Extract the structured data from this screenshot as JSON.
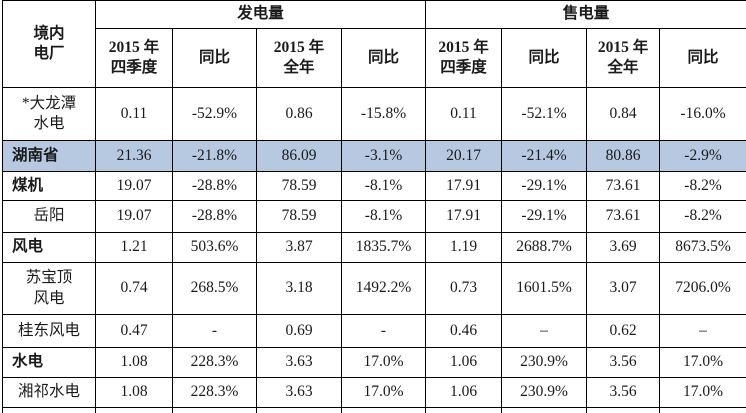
{
  "table": {
    "corner_header": "境内\n电厂",
    "group_headers": [
      {
        "label": "发电量"
      },
      {
        "label": "售电量"
      }
    ],
    "sub_headers": [
      "2015 年\n四季度",
      "同比",
      "2015 年\n全年",
      "同比",
      "2015 年\n四季度",
      "同比",
      "2015 年\n全年",
      "同比"
    ],
    "highlight_color": "#b7c9e1",
    "rows": [
      {
        "label": "*大龙潭\n水电",
        "bold": false,
        "highlight": false,
        "values": [
          "0.11",
          "-52.9%",
          "0.86",
          "-15.8%",
          "0.11",
          "-52.1%",
          "0.84",
          "-16.0%"
        ]
      },
      {
        "label": "湖南省",
        "bold": true,
        "highlight": true,
        "values": [
          "21.36",
          "-21.8%",
          "86.09",
          "-3.1%",
          "20.17",
          "-21.4%",
          "80.86",
          "-2.9%"
        ]
      },
      {
        "label": "煤机",
        "bold": true,
        "highlight": false,
        "values": [
          "19.07",
          "-28.8%",
          "78.59",
          "-8.1%",
          "17.91",
          "-29.1%",
          "73.61",
          "-8.2%"
        ]
      },
      {
        "label": "岳阳",
        "bold": false,
        "highlight": false,
        "values": [
          "19.07",
          "-28.8%",
          "78.59",
          "-8.1%",
          "17.91",
          "-29.1%",
          "73.61",
          "-8.2%"
        ]
      },
      {
        "label": "风电",
        "bold": true,
        "highlight": false,
        "values": [
          "1.21",
          "503.6%",
          "3.87",
          "1835.7%",
          "1.19",
          "2688.7%",
          "3.69",
          "8673.5%"
        ]
      },
      {
        "label": "苏宝顶\n风电",
        "bold": false,
        "highlight": false,
        "values": [
          "0.74",
          "268.5%",
          "3.18",
          "1492.2%",
          "0.73",
          "1601.5%",
          "3.07",
          "7206.0%"
        ]
      },
      {
        "label": "桂东风电",
        "bold": false,
        "highlight": false,
        "values": [
          "0.47",
          "-",
          "0.69",
          "-",
          "0.46",
          "–",
          "0.62",
          "–"
        ]
      },
      {
        "label": "水电",
        "bold": true,
        "highlight": false,
        "values": [
          "1.08",
          "228.3%",
          "3.63",
          "17.0%",
          "1.06",
          "230.9%",
          "3.56",
          "17.0%"
        ]
      },
      {
        "label": "湘祁水电",
        "bold": false,
        "highlight": false,
        "values": [
          "1.08",
          "228.3%",
          "3.63",
          "17.0%",
          "1.06",
          "230.9%",
          "3.56",
          "17.0%"
        ]
      }
    ]
  }
}
